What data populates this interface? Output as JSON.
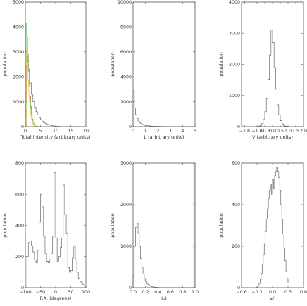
{
  "chart_data": [
    {
      "id": "total-intensity",
      "type": "histogram",
      "xlabel": "Total intensity (arbitrary units)",
      "ylabel": "population",
      "xlim": [
        0,
        20
      ],
      "ylim": [
        0,
        5000
      ],
      "xticks": [
        0,
        5,
        10,
        15,
        20
      ],
      "xtick_labels": [
        "0",
        "5",
        "10",
        "15",
        "20"
      ],
      "yticks": [
        0,
        1000,
        2000,
        3000,
        4000,
        5000
      ],
      "ytick_labels": [
        "0",
        "1000",
        "2000",
        "3000",
        "4000",
        "5000"
      ],
      "series": [
        {
          "color": "#666666",
          "bin_start": 0,
          "bin_width": 0.5,
          "values": [
            0,
            2900,
            2300,
            1750,
            1300,
            1000,
            780,
            600,
            470,
            360,
            280,
            220,
            170,
            130,
            100,
            75,
            55,
            40,
            30,
            20,
            15,
            10,
            8,
            5,
            3,
            2,
            1,
            1,
            0,
            0,
            0,
            0,
            0,
            0,
            0,
            0,
            0,
            0,
            0,
            0
          ]
        },
        {
          "color": "#e05a5a",
          "bin_start": 0,
          "bin_width": 0.25,
          "values": [
            0,
            1200,
            2850,
            2600,
            2300,
            1700,
            1200,
            800,
            500,
            300,
            180,
            100,
            60,
            30,
            15,
            8,
            4,
            2,
            1,
            0
          ]
        },
        {
          "color": "#7fcc7f",
          "bin_start": 0,
          "bin_width": 0.25,
          "values": [
            0,
            4150,
            3600,
            2900,
            2200,
            1600,
            1100,
            700,
            420,
            250,
            150,
            80,
            40,
            20,
            10,
            5,
            2,
            1,
            0,
            0
          ]
        },
        {
          "color": "#e6d65a",
          "bin_start": 0,
          "bin_width": 0.25,
          "values": [
            0,
            3000,
            2500,
            1900,
            1400,
            1000,
            700,
            450,
            300,
            180,
            100,
            50,
            25,
            12,
            6,
            3,
            1,
            0,
            0,
            0
          ]
        }
      ]
    },
    {
      "id": "linear-polarization",
      "type": "histogram",
      "xlabel": "L (arbitrary units)",
      "ylabel": "population",
      "xlim": [
        0,
        5
      ],
      "ylim": [
        0,
        10000
      ],
      "xticks": [
        0,
        1,
        2,
        3,
        4,
        5
      ],
      "xtick_labels": [
        "0",
        "1",
        "2",
        "3",
        "4",
        "5"
      ],
      "yticks": [
        0,
        2000,
        4000,
        6000,
        8000,
        10000
      ],
      "ytick_labels": [
        "0",
        "2000",
        "4000",
        "6000",
        "8000",
        "10000"
      ],
      "series": [
        {
          "color": "#666666",
          "bin_start": 0,
          "bin_width": 0.1,
          "values": [
            2900,
            1500,
            950,
            650,
            450,
            330,
            250,
            190,
            150,
            120,
            100,
            80,
            65,
            55,
            45,
            40,
            35,
            30,
            25,
            22,
            20,
            18,
            15,
            13,
            12,
            10,
            9,
            8,
            7,
            6,
            5,
            5,
            4,
            4,
            3,
            3,
            2,
            2,
            2,
            1,
            1,
            1,
            1,
            1,
            0,
            0,
            0,
            0,
            0,
            0
          ]
        }
      ]
    },
    {
      "id": "circular-polarization",
      "type": "histogram",
      "xlabel": "V (arbitrary units)",
      "ylabel": "population",
      "xlim": [
        -2.0,
        2.0
      ],
      "ylim": [
        0,
        4000
      ],
      "xticks": [
        -1.8,
        -1.0,
        -0.5,
        0.0,
        0.5,
        1.0,
        1.5,
        2.0
      ],
      "xtick_labels": [
        "−1.8",
        "−1.0",
        "−0.5",
        "0.0",
        "0.5",
        "1.0",
        "1.5",
        "2.0"
      ],
      "yticks": [
        0,
        1000,
        2000,
        3000,
        4000
      ],
      "ytick_labels": [
        "0",
        "1000",
        "2000",
        "3000",
        "4000"
      ],
      "series": [
        {
          "color": "#666666",
          "bin_start": -1.0,
          "bin_width": 0.1,
          "values": [
            5,
            15,
            40,
            100,
            230,
            480,
            900,
            1500,
            2300,
            3100,
            2700,
            1900,
            1200,
            700,
            380,
            190,
            90,
            40,
            15,
            5
          ]
        }
      ]
    },
    {
      "id": "position-angle",
      "type": "histogram",
      "xlabel": "P.A. (degrees)",
      "ylabel": "population",
      "xlim": [
        -100,
        100
      ],
      "ylim": [
        0,
        800
      ],
      "xticks": [
        -100,
        -50,
        0,
        50,
        100
      ],
      "xtick_labels": [
        "−100",
        "−50",
        "0",
        "50",
        "100"
      ],
      "yticks": [
        0,
        200,
        400,
        600,
        800
      ],
      "ytick_labels": [
        "0",
        "200",
        "400",
        "600",
        "800"
      ],
      "series": [
        {
          "color": "#666666",
          "bin_start": -95,
          "bin_width": 5,
          "values": [
            200,
            290,
            300,
            270,
            230,
            180,
            160,
            240,
            420,
            600,
            520,
            330,
            220,
            170,
            160,
            180,
            220,
            330,
            740,
            320,
            170,
            200,
            260,
            320,
            660,
            470,
            350,
            130,
            100,
            110,
            190,
            270,
            180,
            100,
            60,
            40,
            30,
            20
          ]
        }
      ]
    },
    {
      "id": "fractional-linear",
      "type": "histogram",
      "xlabel": "L/I",
      "ylabel": "population",
      "xlim": [
        0,
        1
      ],
      "ylim": [
        0,
        3000
      ],
      "xticks": [
        0,
        0.2,
        0.4,
        0.6,
        0.8,
        1.0
      ],
      "xtick_labels": [
        "0.0",
        "0.2",
        "0.4",
        "0.6",
        "0.8",
        "1.0"
      ],
      "yticks": [
        0,
        1000,
        2000,
        3000
      ],
      "ytick_labels": [
        "0",
        "1000",
        "2000",
        "3000"
      ],
      "series": [
        {
          "color": "#666666",
          "bin_start": 0,
          "bin_width": 0.02,
          "values": [
            300,
            1000,
            1450,
            1550,
            1300,
            1000,
            700,
            480,
            330,
            220,
            150,
            100,
            70,
            50,
            35,
            25,
            18,
            12,
            8,
            6,
            4,
            3,
            2,
            2,
            1,
            1,
            1,
            0,
            0,
            0,
            0,
            0,
            0,
            0,
            0,
            0,
            0,
            0,
            0,
            0,
            0,
            0,
            0,
            0,
            0,
            0,
            0,
            0,
            0,
            3000
          ]
        }
      ]
    },
    {
      "id": "fractional-circular",
      "type": "histogram",
      "xlabel": "V/I",
      "ylabel": "population",
      "xlim": [
        -0.6,
        0.6
      ],
      "ylim": [
        0,
        600
      ],
      "xticks": [
        -0.6,
        -0.3,
        0.0,
        0.3,
        0.6
      ],
      "xtick_labels": [
        "−0.6",
        "−0.3",
        "0.0",
        "0.3",
        "0.6"
      ],
      "yticks": [
        0,
        200,
        400,
        600
      ],
      "ytick_labels": [
        "0",
        "200",
        "400",
        "600"
      ],
      "series": [
        {
          "color": "#666666",
          "bin_start": -0.3,
          "bin_width": 0.02,
          "values": [
            3,
            8,
            20,
            40,
            70,
            110,
            160,
            210,
            270,
            330,
            380,
            430,
            470,
            500,
            450,
            520,
            480,
            540,
            560,
            580,
            560,
            530,
            470,
            400,
            330,
            260,
            190,
            130,
            80,
            45,
            22
          ]
        }
      ]
    }
  ]
}
